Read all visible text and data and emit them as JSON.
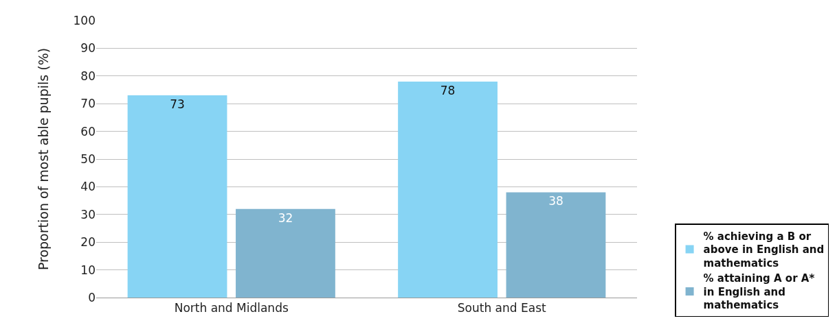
{
  "chart_data": {
    "type": "bar",
    "ylabel": "Proportion of most able pupils (%)",
    "categories": [
      "North and Midlands",
      "South and East"
    ],
    "series": [
      {
        "name": "% achieving a B or above in English and mathematics",
        "color": "#87d4f4",
        "values": [
          73,
          78
        ]
      },
      {
        "name": "% attaining A or A* in English and mathematics",
        "color": "#80b4cf",
        "values": [
          32,
          38
        ]
      }
    ],
    "ylim": [
      0,
      100
    ],
    "yticks": [
      0,
      10,
      20,
      30,
      40,
      50,
      60,
      70,
      80,
      90,
      100
    ],
    "grid": "y",
    "legend": "bottom right",
    "data_labels": true
  }
}
